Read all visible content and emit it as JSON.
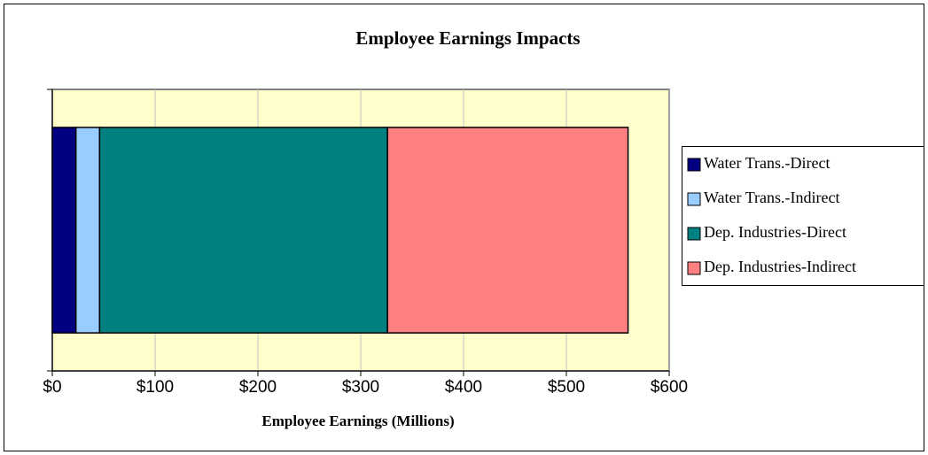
{
  "chart_data": {
    "type": "stacked-barh",
    "title": "Employee Earnings Impacts",
    "x_label": "Employee Earnings (Millions)",
    "categories": [
      null
    ],
    "series": [
      {
        "name": "Water Trans.-Direct",
        "color": "#000080",
        "values": [
          23
        ]
      },
      {
        "name": "Water Trans.-Indirect",
        "color": "#99ccff",
        "values": [
          23
        ]
      },
      {
        "name": "Dep. Industries-Direct",
        "color": "#008080",
        "values": [
          280
        ]
      },
      {
        "name": "Dep. Industries-Indirect",
        "color": "#ff8080",
        "values": [
          234
        ]
      }
    ],
    "xlim": [
      0,
      600
    ],
    "xticks": [
      {
        "value": 0,
        "label": "$0"
      },
      {
        "value": 100,
        "label": "$100"
      },
      {
        "value": 200,
        "label": "$200"
      },
      {
        "value": 300,
        "label": "$300"
      },
      {
        "value": 400,
        "label": "$400"
      },
      {
        "value": 500,
        "label": "$500"
      },
      {
        "value": 600,
        "label": "$600"
      }
    ],
    "grid": true,
    "legend": "right",
    "plot_background": "#ffffcc"
  }
}
